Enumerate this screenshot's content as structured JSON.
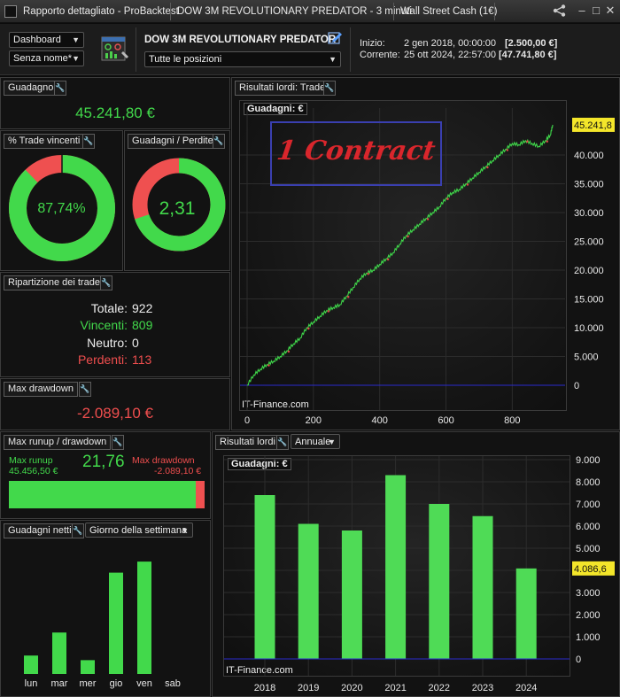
{
  "titlebar": {
    "app_title": "Rapporto dettagliato - ProBacktest",
    "strategy_tab": "DOW 3M REVOLUTIONARY  PREDATOR - 3 minuti",
    "instrument_tab": "Wall Street Cash (1€)"
  },
  "toolbar": {
    "view_select": "Dashboard",
    "name_select": "Senza nome*",
    "strategy_name": "DOW 3M REVOLUTIONARY  PREDATOR",
    "position_select": "Tutte le posizioni",
    "start_label": "Inizio:",
    "start_date": "2 gen 2018, 00:00:00",
    "start_capital": "[2.500,00 €]",
    "current_label": "Corrente:",
    "current_date": "25 ott 2024, 22:57:00",
    "current_capital": "[47.741,80 €]"
  },
  "gain_panel": {
    "title": "Guadagno",
    "value": "45.241,80 €"
  },
  "winrate_panel": {
    "title": "% Trade vincenti",
    "value": "87,74%",
    "fraction": 0.8774
  },
  "ratio_panel": {
    "title": "Guadagni / Perdite",
    "value": "2,31",
    "fraction": 0.698
  },
  "breakdown_panel": {
    "title": "Ripartizione dei trade",
    "total_label": "Totale:",
    "total_value": "922",
    "win_label": "Vincenti:",
    "win_value": "809",
    "neutral_label": "Neutro:",
    "neutral_value": "0",
    "loss_label": "Perdenti:",
    "loss_value": "113"
  },
  "drawdown_panel": {
    "title": "Max drawdown",
    "value": "-2.089,10 €"
  },
  "runup_panel": {
    "title": "Max runup / drawdown",
    "runup_label": "Max runup",
    "runup_value": "45.456,50 €",
    "ratio": "21,76",
    "dd_label": "Max drawdown",
    "dd_value": "-2.089,10 €",
    "runup_fraction": 0.956
  },
  "trade_chart": {
    "panel_title": "Risultati lordi: Trade",
    "tag": "Guadagni: €",
    "annotation": "1 Contract",
    "last_value_label": "45.241,8",
    "credit": "IT-Finance.com"
  },
  "yearly_chart": {
    "panel_title": "Risultati lordi",
    "period_select": "Annuale",
    "tag": "Guadagni: €",
    "last_value_label": "4.086,6",
    "credit": "IT-Finance.com"
  },
  "weekday_chart": {
    "panel_title": "Guadagni netti",
    "period_select": "Giorno della settimana"
  },
  "colors": {
    "green": "#42d94b",
    "red": "#ef4e4e",
    "annotation_blue": "#3a3fb0",
    "value_tag": "#f4e62a"
  },
  "chart_data": [
    {
      "type": "line",
      "title": "Guadagni: €",
      "xlabel": "",
      "ylabel": "",
      "x_ticks": [
        0,
        200,
        400,
        600,
        800
      ],
      "y_ticks": [
        "0",
        "5.000",
        "10.000",
        "15.000",
        "20.000",
        "25.000",
        "30.000",
        "35.000",
        "40.000"
      ],
      "xlim": [
        0,
        922
      ],
      "ylim": [
        -2000,
        47000
      ],
      "series": [
        {
          "x": [
            0,
            20,
            40,
            60,
            80,
            100,
            120,
            140,
            160,
            180,
            200,
            220,
            240,
            260,
            280,
            300,
            320,
            340,
            360,
            380,
            400,
            420,
            440,
            460,
            480,
            500,
            520,
            540,
            560,
            580,
            600,
            620,
            640,
            660,
            680,
            700,
            720,
            740,
            760,
            780,
            800,
            820,
            840,
            860,
            880,
            900,
            915,
            922
          ],
          "y": [
            0,
            1800,
            2800,
            3600,
            4200,
            5000,
            6000,
            7200,
            8200,
            10000,
            11000,
            12000,
            13000,
            13500,
            14000,
            15500,
            17000,
            18500,
            19500,
            20000,
            21000,
            22000,
            23000,
            24500,
            26000,
            27000,
            28000,
            29000,
            30000,
            31000,
            32500,
            33500,
            34000,
            35000,
            36000,
            37000,
            38000,
            39000,
            40000,
            41000,
            42000,
            41800,
            42500,
            42000,
            41500,
            42500,
            43500,
            45241.8
          ]
        }
      ]
    },
    {
      "type": "bar",
      "title": "Guadagni: €",
      "categories": [
        "2018",
        "2019",
        "2020",
        "2021",
        "2022",
        "2023",
        "2024"
      ],
      "values": [
        7400,
        6100,
        5800,
        8300,
        7000,
        6450,
        4086.6
      ],
      "y_ticks": [
        "0",
        "1.000",
        "2.000",
        "3.000",
        "4.000",
        "5.000",
        "6.000",
        "7.000",
        "8.000",
        "9.000"
      ],
      "ylim": [
        0,
        9000
      ]
    },
    {
      "type": "bar",
      "title": "Guadagni netti",
      "categories": [
        "lun",
        "mar",
        "mer",
        "gio",
        "ven",
        "sab"
      ],
      "values": [
        2000,
        4500,
        1500,
        11000,
        12200,
        0
      ]
    }
  ]
}
